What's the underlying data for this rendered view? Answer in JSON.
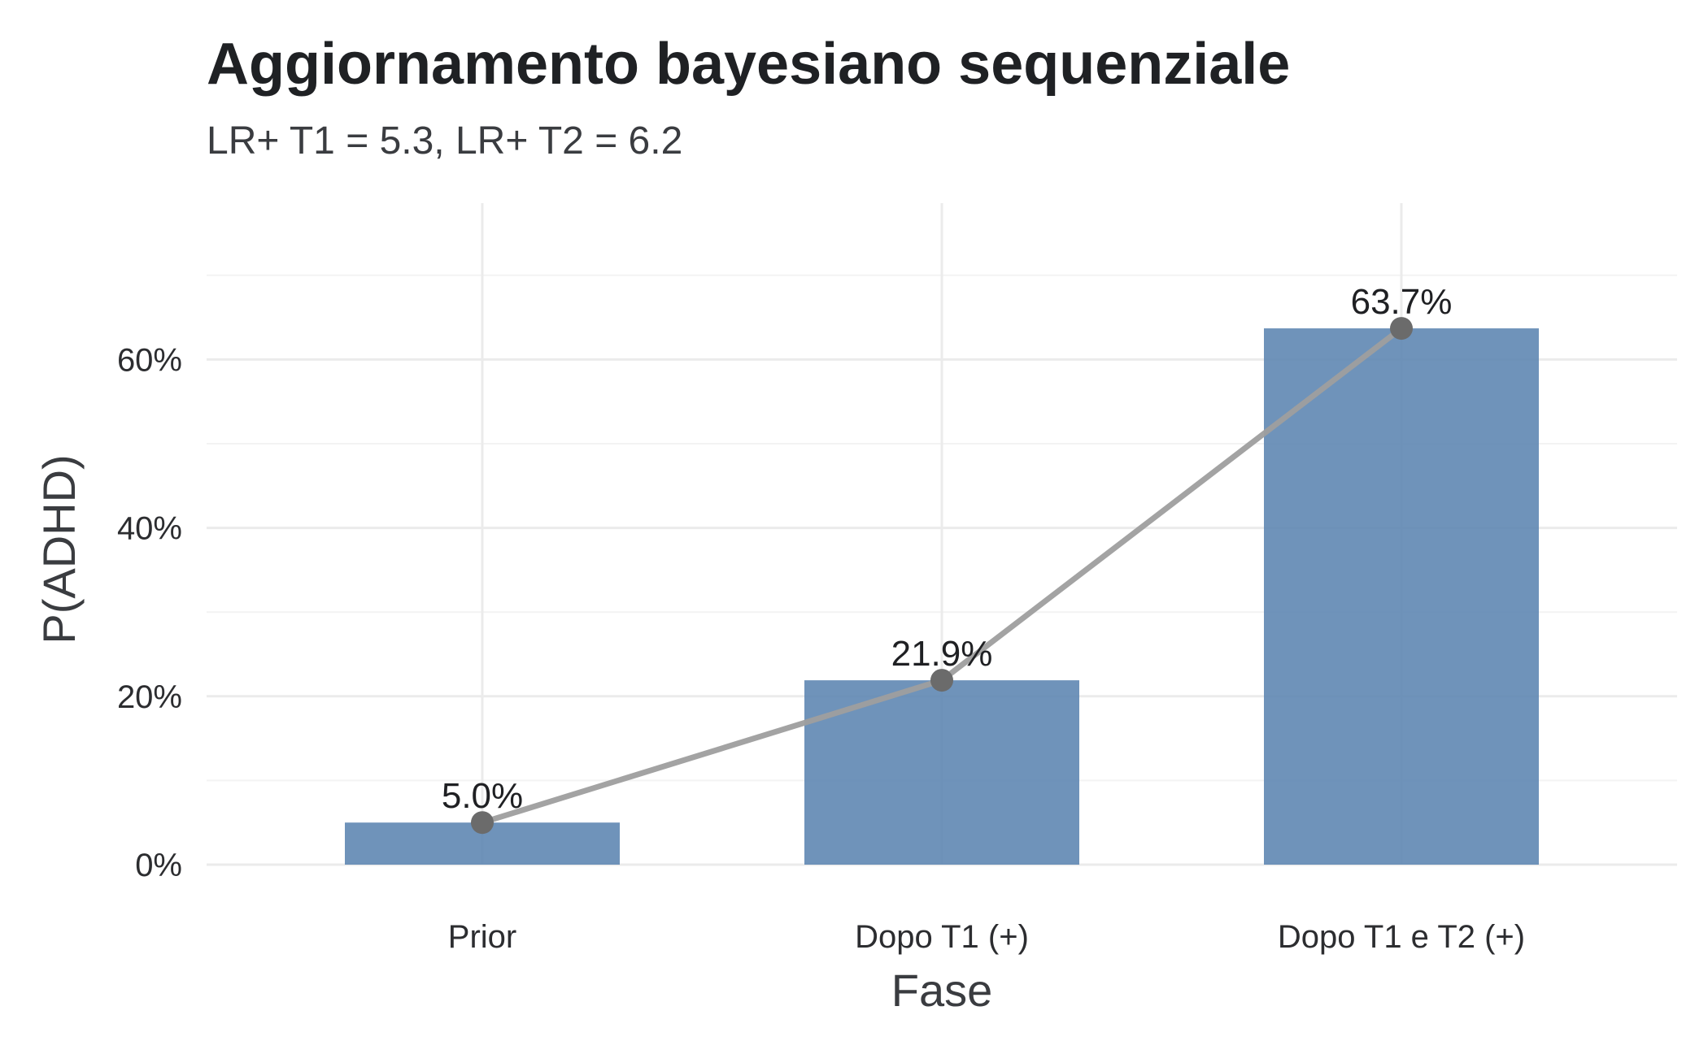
{
  "title": "Aggiornamento bayesiano sequenziale",
  "subtitle": "LR+ T1 = 5.3, LR+ T2 = 6.2",
  "chart_data": {
    "type": "bar",
    "title": "Aggiornamento bayesiano sequenziale",
    "subtitle": "LR+ T1 = 5.3, LR+ T2 = 6.2",
    "xlabel": "Fase",
    "ylabel": "P(ADHD)",
    "categories": [
      "Prior",
      "Dopo T1 (+)",
      "Dopo T1 e T2 (+)"
    ],
    "values": [
      5.0,
      21.9,
      63.7
    ],
    "data_labels": [
      "5.0%",
      "21.9%",
      "63.7%"
    ],
    "ylim": [
      0,
      70
    ],
    "yticks": [
      0,
      20,
      40,
      60
    ],
    "ytick_labels": [
      "0%",
      "20%",
      "40%",
      "60%"
    ],
    "overlay": "line with points connecting bar tops",
    "grid": true,
    "legend": "none",
    "colors": {
      "bar": "#5b84b1",
      "line": "#9e9e9e",
      "point": "#6b6b6b",
      "grid": "#ebebeb"
    }
  }
}
